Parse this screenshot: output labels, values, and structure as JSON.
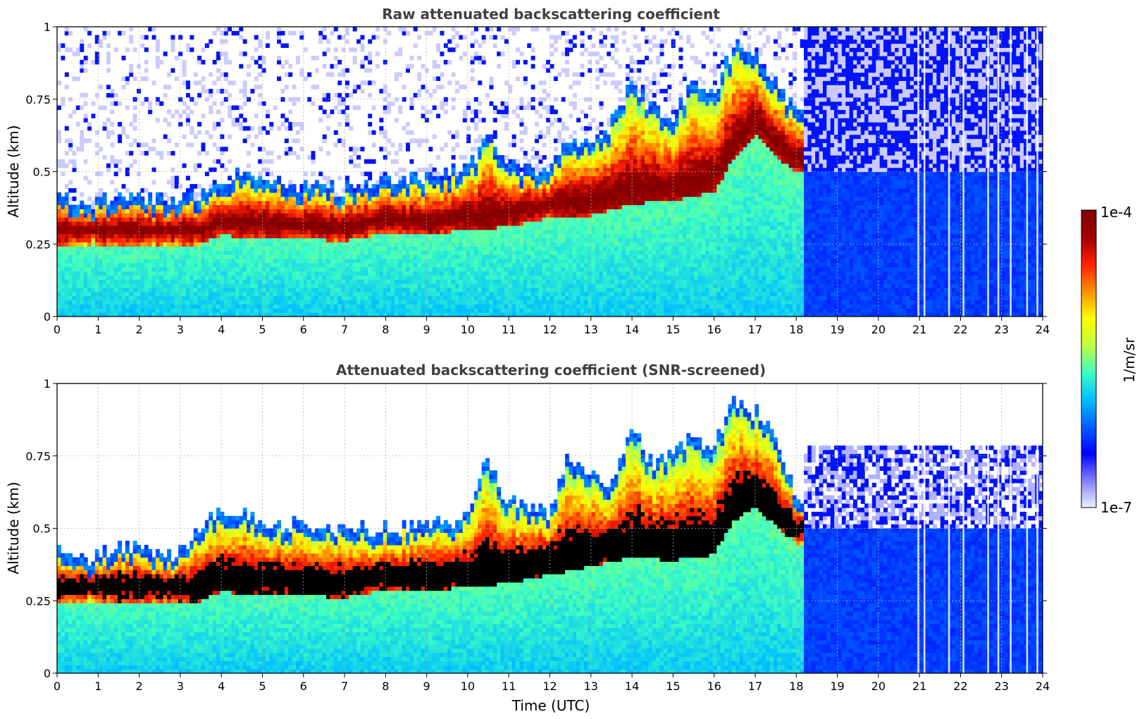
{
  "figure": {
    "xlabel": "Time (UTC)",
    "colorbar": {
      "label": "1/m/sr",
      "max_label": "1e-4",
      "min_label": "1e-7",
      "scale": "log",
      "range": [
        1e-07,
        0.0001
      ],
      "colormap": [
        "#f0f0ff",
        "#8080ff",
        "#0000ff",
        "#0060ff",
        "#00c0ff",
        "#40ffc0",
        "#c0ff40",
        "#ffff00",
        "#ff9000",
        "#ff2000",
        "#a00000",
        "#800000"
      ]
    }
  },
  "chart_data": [
    {
      "type": "heatmap",
      "title": "Raw attenuated backscattering coefficient",
      "xlabel": "",
      "ylabel": "Altitude (km)",
      "xlim": [
        0,
        24
      ],
      "ylim": [
        0,
        1
      ],
      "x_ticks": [
        0,
        1,
        2,
        3,
        4,
        5,
        6,
        7,
        8,
        9,
        10,
        11,
        12,
        13,
        14,
        15,
        16,
        17,
        18,
        19,
        20,
        21,
        22,
        23,
        24
      ],
      "y_ticks": [
        0,
        0.25,
        0.5,
        0.75,
        1
      ],
      "y_tick_labels": [
        "0",
        "0.25",
        "0.5",
        "0.75",
        "1"
      ],
      "grid": true,
      "screened": false,
      "layer_top_km": [
        [
          0,
          0.42
        ],
        [
          0.8,
          0.39
        ],
        [
          1.5,
          0.41
        ],
        [
          3,
          0.4
        ],
        [
          3.7,
          0.43
        ],
        [
          4.5,
          0.5
        ],
        [
          6,
          0.45
        ],
        [
          7,
          0.44
        ],
        [
          8,
          0.46
        ],
        [
          9,
          0.48
        ],
        [
          10,
          0.5
        ],
        [
          10.5,
          0.62
        ],
        [
          11,
          0.52
        ],
        [
          12,
          0.5
        ],
        [
          12.4,
          0.6
        ],
        [
          13,
          0.62
        ],
        [
          13.5,
          0.66
        ],
        [
          14,
          0.8
        ],
        [
          14.5,
          0.72
        ],
        [
          15,
          0.7
        ],
        [
          15.5,
          0.8
        ],
        [
          16,
          0.75
        ],
        [
          16.5,
          0.95
        ],
        [
          17,
          0.9
        ],
        [
          17.5,
          0.8
        ],
        [
          18,
          0.7
        ]
      ],
      "layer_center_km": [
        [
          0,
          0.3
        ],
        [
          3.5,
          0.3
        ],
        [
          4,
          0.33
        ],
        [
          6,
          0.32
        ],
        [
          7,
          0.31
        ],
        [
          8,
          0.34
        ],
        [
          9,
          0.33
        ],
        [
          10,
          0.35
        ],
        [
          11,
          0.36
        ],
        [
          12,
          0.39
        ],
        [
          13,
          0.4
        ],
        [
          14,
          0.44
        ],
        [
          15,
          0.45
        ],
        [
          16,
          0.48
        ],
        [
          16.5,
          0.6
        ],
        [
          17,
          0.68
        ],
        [
          17.5,
          0.6
        ],
        [
          18,
          0.55
        ]
      ]
    },
    {
      "type": "heatmap",
      "title": "Attenuated backscattering coefficient (SNR-screened)",
      "xlabel": "Time (UTC)",
      "ylabel": "Altitude (km)",
      "xlim": [
        0,
        24
      ],
      "ylim": [
        0,
        1
      ],
      "x_ticks": [
        0,
        1,
        2,
        3,
        4,
        5,
        6,
        7,
        8,
        9,
        10,
        11,
        12,
        13,
        14,
        15,
        16,
        17,
        18,
        19,
        20,
        21,
        22,
        23,
        24
      ],
      "y_ticks": [
        0,
        0.25,
        0.5,
        0.75,
        1
      ],
      "y_tick_labels": [
        "0",
        "0.25",
        "0.5",
        "0.75",
        "1"
      ],
      "grid": true,
      "screened": true,
      "layer_top_km": [
        [
          0,
          0.44
        ],
        [
          0.8,
          0.39
        ],
        [
          1.5,
          0.44
        ],
        [
          3,
          0.41
        ],
        [
          3.7,
          0.54
        ],
        [
          4.5,
          0.57
        ],
        [
          5,
          0.5
        ],
        [
          6,
          0.52
        ],
        [
          7,
          0.5
        ],
        [
          8,
          0.5
        ],
        [
          9,
          0.51
        ],
        [
          10,
          0.54
        ],
        [
          10.4,
          0.74
        ],
        [
          11,
          0.6
        ],
        [
          12,
          0.55
        ],
        [
          12.4,
          0.75
        ],
        [
          13,
          0.7
        ],
        [
          13.5,
          0.66
        ],
        [
          14,
          0.85
        ],
        [
          14.5,
          0.72
        ],
        [
          15,
          0.76
        ],
        [
          15.5,
          0.82
        ],
        [
          16,
          0.78
        ],
        [
          16.5,
          0.95
        ],
        [
          17,
          0.9
        ],
        [
          17.5,
          0.8
        ],
        [
          18,
          0.62
        ]
      ],
      "layer_center_km": [
        [
          0,
          0.3
        ],
        [
          3.5,
          0.3
        ],
        [
          4,
          0.33
        ],
        [
          6,
          0.32
        ],
        [
          7,
          0.31
        ],
        [
          8,
          0.34
        ],
        [
          9,
          0.33
        ],
        [
          10,
          0.35
        ],
        [
          11,
          0.36
        ],
        [
          12,
          0.39
        ],
        [
          13,
          0.42
        ],
        [
          14,
          0.45
        ],
        [
          15,
          0.44
        ],
        [
          16,
          0.46
        ],
        [
          16.5,
          0.58
        ],
        [
          17,
          0.62
        ],
        [
          17.5,
          0.56
        ],
        [
          18,
          0.5
        ]
      ]
    }
  ]
}
